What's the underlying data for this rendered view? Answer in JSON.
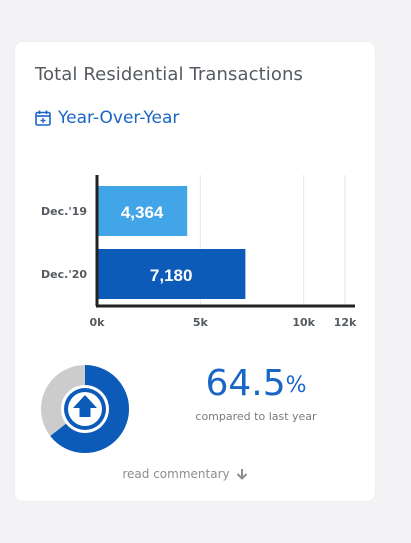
{
  "card": {
    "title": "Total Residential Transactions",
    "period_label": "Year-Over-Year",
    "commentary_link": "read commentary"
  },
  "summary": {
    "change_value": "64.5",
    "change_unit": "%",
    "change_caption": "compared to last year",
    "change_percent": 64.5,
    "direction": "up",
    "direction_icon": "arrow-up-icon"
  },
  "colors": {
    "accent": "#1a66c6",
    "bar_previous": "#41a5e8",
    "bar_current": "#0c5bb8",
    "donut_track": "#cccccc",
    "donut_fill": "#0c5bb8"
  },
  "chart_data": {
    "type": "bar",
    "orientation": "horizontal",
    "categories": [
      "Dec.'19",
      "Dec.'20"
    ],
    "values": [
      4364,
      7180
    ],
    "value_labels": [
      "4,364",
      "7,180"
    ],
    "xlim": [
      0,
      12000
    ],
    "xticks": [
      0,
      5000,
      10000,
      12000
    ],
    "xtick_labels": [
      "0k",
      "5k",
      "10k",
      "12k"
    ],
    "grid": true
  }
}
